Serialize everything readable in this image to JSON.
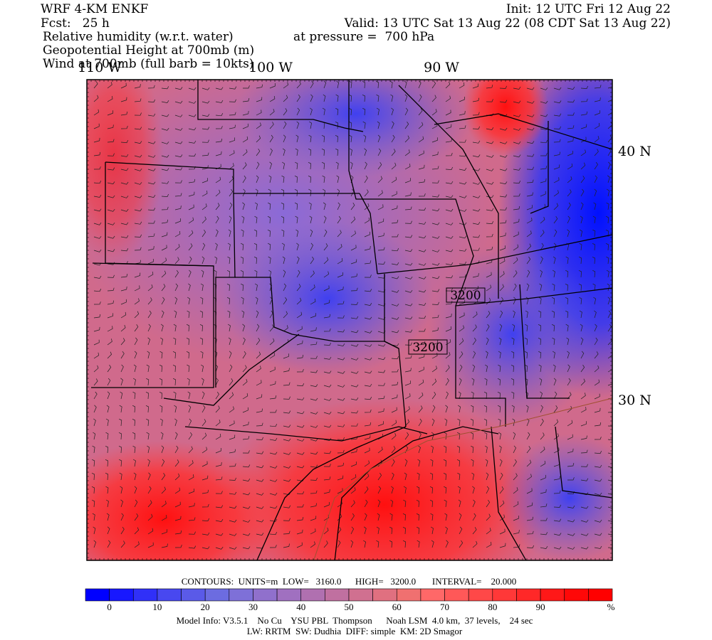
{
  "header": {
    "left": [
      "WRF 4-KM ENKF",
      "Fcst:   25 h"
    ],
    "right": [
      "Init: 12 UTC Fri 12 Aug 22",
      "Valid: 13 UTC Sat 13 Aug 22 (08 CDT Sat 13 Aug 22)"
    ],
    "fields": [
      "Relative humidity (w.r.t. water)",
      "Geopotential Height at 700mb (m)",
      "Wind at 700mb (full barb = 10kts)"
    ],
    "pressure": "at pressure =  700 hPa"
  },
  "map": {
    "lon_labels": [
      "110 W",
      "100 W",
      "90 W"
    ],
    "lat_labels": [
      "40 N",
      "30 N"
    ],
    "contour_labels": [
      "3200",
      "3200"
    ]
  },
  "contours_line": "CONTOURS:  UNITS=m  LOW=   3160.0      HIGH=   3200.0       INTERVAL=    20.000",
  "colorbar": {
    "colors": [
      "#0000ff",
      "#1818ff",
      "#3030f8",
      "#4848f0",
      "#5a5ae8",
      "#6c6ce0",
      "#7e70d8",
      "#9070cc",
      "#a070c0",
      "#b070b0",
      "#c070a0",
      "#d07090",
      "#e07080",
      "#f07070",
      "#ff6868",
      "#ff5858",
      "#ff4848",
      "#ff3838",
      "#ff2828",
      "#ff1818",
      "#ff0808",
      "#ff0000"
    ],
    "labels": [
      "0",
      "10",
      "20",
      "30",
      "40",
      "50",
      "60",
      "70",
      "80",
      "90"
    ],
    "unit": "%"
  },
  "footer": [
    "Model Info: V3.5.1    No Cu    YSU PBL  Thompson      Noah LSM  4.0 km,  37 levels,    24 sec",
    "LW: RRTM  SW: Dudhia  DIFF: simple  KM: 2D Smagor"
  ]
}
